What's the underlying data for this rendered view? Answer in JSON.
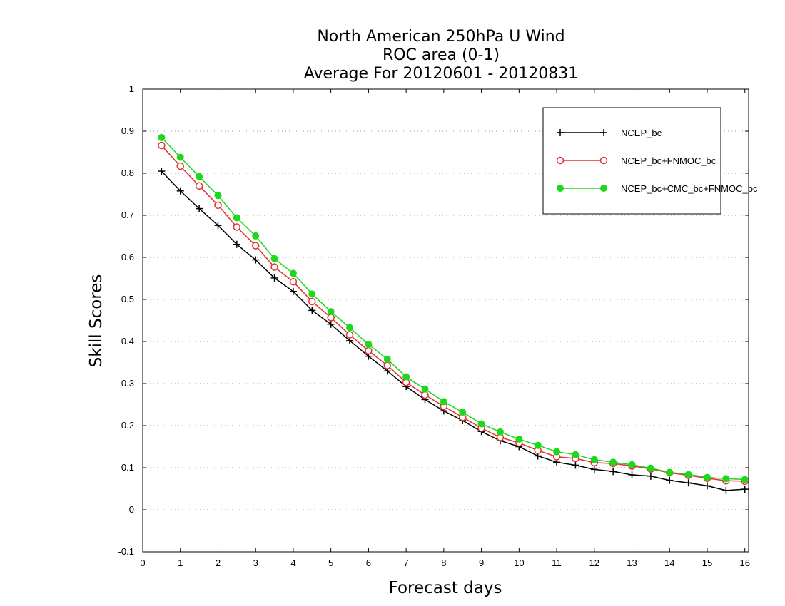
{
  "chart_data": {
    "type": "line",
    "title": [
      "North American 250hPa U Wind",
      "ROC area (0-1)",
      "Average For 20120601 - 20120831"
    ],
    "xlabel": "Forecast days",
    "ylabel": "Skill Scores",
    "xlim": [
      0,
      16.1
    ],
    "ylim": [
      -0.1,
      1
    ],
    "xticks": [
      0,
      1,
      2,
      3,
      4,
      5,
      6,
      7,
      8,
      9,
      10,
      11,
      12,
      13,
      14,
      15,
      16
    ],
    "yticks": [
      -0.1,
      0,
      0.1,
      0.2,
      0.3,
      0.4,
      0.5,
      0.6,
      0.7,
      0.8,
      0.9,
      1
    ],
    "ytick_labels": [
      "-0.1",
      "0",
      "0.1",
      "0.2",
      "0.3",
      "0.4",
      "0.5",
      "0.6",
      "0.7",
      "0.8",
      "0.9",
      "1"
    ],
    "grid": "horizontal-dotted",
    "legend_position": "top-right",
    "x": [
      0.5,
      1,
      1.5,
      2,
      2.5,
      3,
      3.5,
      4,
      4.5,
      5,
      5.5,
      6,
      6.5,
      7,
      7.5,
      8,
      8.5,
      9,
      9.5,
      10,
      10.5,
      11,
      11.5,
      12,
      12.5,
      13,
      13.5,
      14,
      14.5,
      15,
      15.5,
      16
    ],
    "series": [
      {
        "name": "NCEP_bc",
        "color": "#000000",
        "marker": "plus",
        "values": [
          0.805,
          0.758,
          0.716,
          0.676,
          0.631,
          0.594,
          0.551,
          0.519,
          0.474,
          0.441,
          0.402,
          0.365,
          0.33,
          0.293,
          0.262,
          0.235,
          0.212,
          0.186,
          0.164,
          0.15,
          0.128,
          0.113,
          0.106,
          0.096,
          0.091,
          0.083,
          0.08,
          0.07,
          0.064,
          0.057,
          0.046,
          0.049
        ]
      },
      {
        "name": "NCEP_bc+FNMOC_bc",
        "color": "#e33030",
        "marker": "open-circle",
        "values": [
          0.866,
          0.817,
          0.77,
          0.724,
          0.672,
          0.628,
          0.577,
          0.542,
          0.495,
          0.457,
          0.416,
          0.378,
          0.343,
          0.303,
          0.273,
          0.246,
          0.22,
          0.194,
          0.172,
          0.159,
          0.141,
          0.126,
          0.122,
          0.112,
          0.11,
          0.104,
          0.097,
          0.088,
          0.082,
          0.075,
          0.069,
          0.068
        ]
      },
      {
        "name": "NCEP_bc+CMC_bc+FNMOC_bc",
        "color": "#1ed81e",
        "marker": "filled-circle",
        "values": [
          0.885,
          0.838,
          0.792,
          0.747,
          0.694,
          0.651,
          0.597,
          0.562,
          0.513,
          0.471,
          0.433,
          0.393,
          0.358,
          0.316,
          0.287,
          0.257,
          0.232,
          0.204,
          0.185,
          0.168,
          0.153,
          0.138,
          0.131,
          0.119,
          0.113,
          0.107,
          0.099,
          0.089,
          0.084,
          0.077,
          0.074,
          0.072
        ]
      }
    ]
  }
}
